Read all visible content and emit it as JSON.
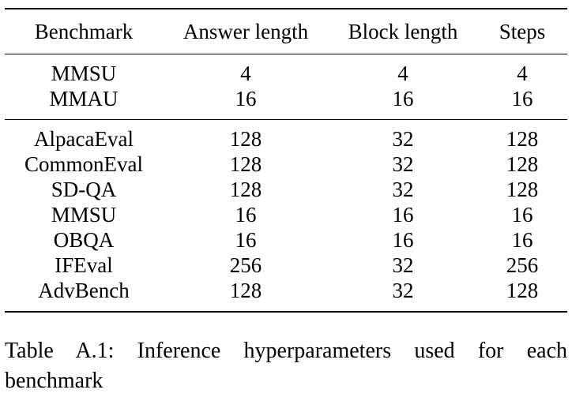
{
  "table": {
    "headers": [
      "Benchmark",
      "Answer length",
      "Block length",
      "Steps"
    ],
    "groups": [
      [
        [
          "MMSU",
          "4",
          "4",
          "4"
        ],
        [
          "MMAU",
          "16",
          "16",
          "16"
        ]
      ],
      [
        [
          "AlpacaEval",
          "128",
          "32",
          "128"
        ],
        [
          "CommonEval",
          "128",
          "32",
          "128"
        ],
        [
          "SD-QA",
          "128",
          "32",
          "128"
        ],
        [
          "MMSU",
          "16",
          "16",
          "16"
        ],
        [
          "OBQA",
          "16",
          "16",
          "16"
        ],
        [
          "IFEval",
          "256",
          "32",
          "256"
        ],
        [
          "AdvBench",
          "128",
          "32",
          "128"
        ]
      ]
    ]
  },
  "caption": "Table A.1: Inference hyperparameters used for each benchmark"
}
